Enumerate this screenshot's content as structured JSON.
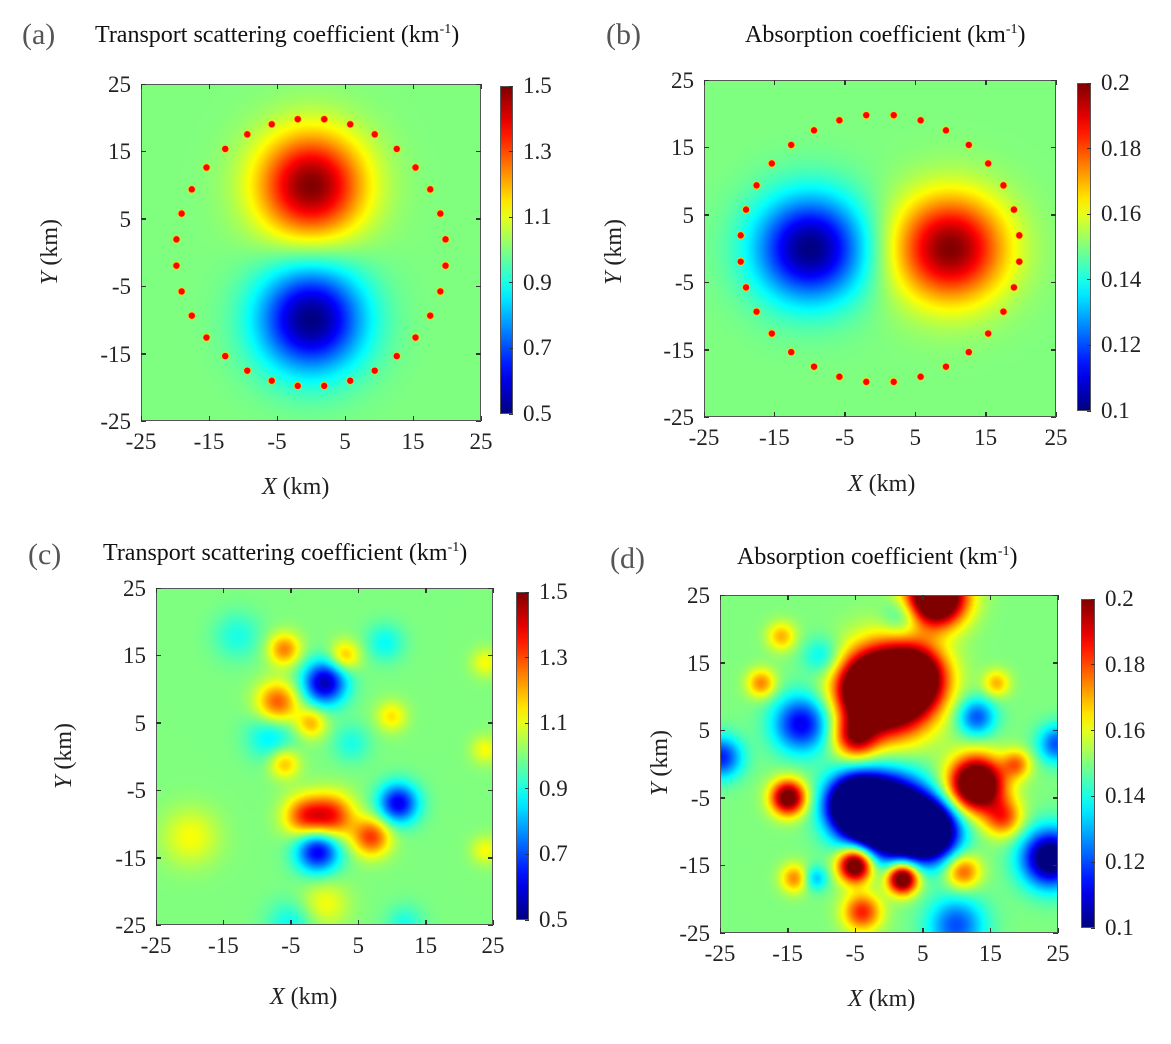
{
  "figure": {
    "description": "Four heat-map panels: true and reconstructed optical coefficient fields with sensor ring"
  },
  "chart_data": [
    {
      "id": "a",
      "panel_label": "(a)",
      "type": "heatmap",
      "title": "Transport scattering coefficient (km",
      "title_sup": "-1",
      "title_close": ")",
      "xlabel_var": "X",
      "xlabel_unit": " (km)",
      "ylabel_var": "Y",
      "ylabel_unit": " (km)",
      "xlim": [
        -25,
        25
      ],
      "ylim": [
        -25,
        25
      ],
      "xticks": [
        "-25",
        "-15",
        "-5",
        "5",
        "15",
        "25"
      ],
      "yticks": [
        "25",
        "15",
        "5",
        "-5",
        "-15",
        "-25"
      ],
      "colormap": "jet",
      "clim": [
        0.5,
        1.5
      ],
      "colorbar_ticks": [
        "1.5",
        "1.3",
        "1.1",
        "0.9",
        "0.7",
        "0.5"
      ],
      "background_value": 1.0,
      "field": "gaussian_anomalies",
      "anomalies": [
        {
          "x": 0,
          "y": 10,
          "amplitude": 0.5,
          "radius_km": 5.5
        },
        {
          "x": 0,
          "y": -10,
          "amplitude": -0.5,
          "radius_km": 5.5
        }
      ],
      "sensors": {
        "count": 32,
        "radius_km": 20,
        "center": [
          0,
          0
        ],
        "color": "#ff0000"
      }
    },
    {
      "id": "b",
      "panel_label": "(b)",
      "type": "heatmap",
      "title": "Absorption coefficient (km",
      "title_sup": "-1",
      "title_close": ")",
      "xlabel_var": "X",
      "xlabel_unit": " (km)",
      "ylabel_var": "Y",
      "ylabel_unit": " (km)",
      "xlim": [
        -25,
        25
      ],
      "ylim": [
        -25,
        25
      ],
      "xticks": [
        "-25",
        "-15",
        "-5",
        "5",
        "15",
        "25"
      ],
      "yticks": [
        "25",
        "15",
        "5",
        "-5",
        "-15",
        "-25"
      ],
      "colormap": "jet",
      "clim": [
        0.1,
        0.2
      ],
      "colorbar_ticks": [
        "0.2",
        "0.18",
        "0.16",
        "0.14",
        "0.12",
        "0.1"
      ],
      "background_value": 0.15,
      "field": "gaussian_anomalies",
      "anomalies": [
        {
          "x": -10,
          "y": 0,
          "amplitude": -0.05,
          "radius_km": 5.5
        },
        {
          "x": 10,
          "y": 0,
          "amplitude": 0.05,
          "radius_km": 5.5
        }
      ],
      "sensors": {
        "count": 32,
        "radius_km": 20,
        "center": [
          0,
          0
        ],
        "color": "#ff0000"
      }
    },
    {
      "id": "c",
      "panel_label": "(c)",
      "type": "heatmap",
      "title": "Transport scattering coefficient (km",
      "title_sup": "-1",
      "title_close": ")",
      "xlabel_var": "X",
      "xlabel_unit": " (km)",
      "ylabel_var": "Y",
      "ylabel_unit": " (km)",
      "xlim": [
        -25,
        25
      ],
      "ylim": [
        -25,
        25
      ],
      "xticks": [
        "-25",
        "-15",
        "-5",
        "5",
        "15",
        "25"
      ],
      "yticks": [
        "25",
        "15",
        "5",
        "-5",
        "-15",
        "-25"
      ],
      "colormap": "jet",
      "clim": [
        0.5,
        1.5
      ],
      "colorbar_ticks": [
        "1.5",
        "1.3",
        "1.1",
        "0.9",
        "0.7",
        "0.5"
      ],
      "background_value": 1.0,
      "field": "reconstruction",
      "anomalies": [
        {
          "x": 0,
          "y": 11,
          "amplitude": -0.45,
          "radius_km": 2.3
        },
        {
          "x": -7,
          "y": 8,
          "amplitude": 0.3,
          "radius_km": 2.2
        },
        {
          "x": -6,
          "y": 16,
          "amplitude": 0.25,
          "radius_km": 1.7
        },
        {
          "x": 3,
          "y": 15,
          "amplitude": 0.2,
          "radius_km": 1.6
        },
        {
          "x": -2,
          "y": 5,
          "amplitude": 0.2,
          "radius_km": 1.6
        },
        {
          "x": -6,
          "y": -1,
          "amplitude": 0.2,
          "radius_km": 1.6
        },
        {
          "x": -8,
          "y": 3,
          "amplitude": -0.15,
          "radius_km": 2.5
        },
        {
          "x": 1,
          "y": -9,
          "amplitude": 0.35,
          "radius_km": 2.4
        },
        {
          "x": -3,
          "y": -9,
          "amplitude": 0.3,
          "radius_km": 2.2
        },
        {
          "x": 7,
          "y": -12,
          "amplitude": 0.32,
          "radius_km": 2.0
        },
        {
          "x": 11,
          "y": -7,
          "amplitude": -0.4,
          "radius_km": 2.1
        },
        {
          "x": -1,
          "y": -14,
          "amplitude": -0.42,
          "radius_km": 2.3
        },
        {
          "x": 10,
          "y": 6,
          "amplitude": 0.15,
          "radius_km": 1.6
        },
        {
          "x": 4,
          "y": 2,
          "amplitude": -0.1,
          "radius_km": 2.0
        },
        {
          "x": 9,
          "y": 17,
          "amplitude": -0.12,
          "radius_km": 2.0
        },
        {
          "x": -13,
          "y": 18,
          "amplitude": -0.1,
          "radius_km": 2.5
        },
        {
          "x": -20,
          "y": -12,
          "amplitude": 0.12,
          "radius_km": 3.0
        },
        {
          "x": 24,
          "y": 14,
          "amplitude": 0.12,
          "radius_km": 1.5
        },
        {
          "x": 24,
          "y": 1,
          "amplitude": 0.12,
          "radius_km": 1.5
        },
        {
          "x": 24,
          "y": -14,
          "amplitude": 0.12,
          "radius_km": 1.5
        },
        {
          "x": 0,
          "y": -22,
          "amplitude": 0.12,
          "radius_km": 2.5
        },
        {
          "x": -5,
          "y": -25,
          "amplitude": -0.12,
          "radius_km": 2.5
        },
        {
          "x": 12,
          "y": -25,
          "amplitude": -0.1,
          "radius_km": 2.0
        }
      ],
      "sensors": null
    },
    {
      "id": "d",
      "panel_label": "(d)",
      "type": "heatmap",
      "title": "Absorption coefficient (km",
      "title_sup": "-1",
      "title_close": ")",
      "xlabel_var": "X",
      "xlabel_unit": " (km)",
      "ylabel_var": "Y",
      "ylabel_unit": " (km)",
      "xlim": [
        -25,
        25
      ],
      "ylim": [
        -25,
        25
      ],
      "xticks": [
        "-25",
        "-15",
        "-5",
        "5",
        "15",
        "25"
      ],
      "yticks": [
        "25",
        "15",
        "5",
        "-5",
        "-15",
        "-25"
      ],
      "colormap": "jet",
      "clim": [
        0.1,
        0.2
      ],
      "colorbar_ticks": [
        "0.2",
        "0.18",
        "0.16",
        "0.14",
        "0.12",
        "0.1"
      ],
      "background_value": 0.15,
      "field": "reconstruction",
      "anomalies": [
        {
          "x": 0,
          "y": 11,
          "amplitude": 0.09,
          "radius_km": 4.5
        },
        {
          "x": -3,
          "y": 11,
          "amplitude": 0.05,
          "radius_km": 3.0
        },
        {
          "x": 4,
          "y": 13,
          "amplitude": 0.05,
          "radius_km": 3.0
        },
        {
          "x": -5,
          "y": 4,
          "amplitude": 0.04,
          "radius_km": 2.2
        },
        {
          "x": 7,
          "y": 25,
          "amplitude": 0.09,
          "radius_km": 3.0
        },
        {
          "x": 0,
          "y": -8,
          "amplitude": -0.1,
          "radius_km": 4.0
        },
        {
          "x": -5,
          "y": -6,
          "amplitude": -0.08,
          "radius_km": 3.0
        },
        {
          "x": 6,
          "y": -10,
          "amplitude": -0.08,
          "radius_km": 3.0
        },
        {
          "x": -13,
          "y": 6,
          "amplitude": -0.04,
          "radius_km": 3.0
        },
        {
          "x": -15,
          "y": -5,
          "amplitude": 0.06,
          "radius_km": 1.8
        },
        {
          "x": 13,
          "y": -3,
          "amplitude": 0.08,
          "radius_km": 2.8
        },
        {
          "x": 19,
          "y": 0,
          "amplitude": 0.025,
          "radius_km": 1.5
        },
        {
          "x": 17,
          "y": -8,
          "amplitude": 0.03,
          "radius_km": 2.0
        },
        {
          "x": -5,
          "y": -15,
          "amplitude": 0.07,
          "radius_km": 1.8
        },
        {
          "x": 2,
          "y": -17,
          "amplitude": 0.07,
          "radius_km": 1.6
        },
        {
          "x": -4,
          "y": -22,
          "amplitude": 0.035,
          "radius_km": 2.0
        },
        {
          "x": 11,
          "y": -16,
          "amplitude": 0.03,
          "radius_km": 1.8
        },
        {
          "x": -14,
          "y": -17,
          "amplitude": 0.025,
          "radius_km": 1.5
        },
        {
          "x": -11,
          "y": -17,
          "amplitude": -0.02,
          "radius_km": 1.3
        },
        {
          "x": 24,
          "y": -14,
          "amplitude": -0.06,
          "radius_km": 3.0
        },
        {
          "x": 25,
          "y": 3,
          "amplitude": -0.03,
          "radius_km": 2.0
        },
        {
          "x": -25,
          "y": 1,
          "amplitude": -0.035,
          "radius_km": 2.2
        },
        {
          "x": -19,
          "y": 12,
          "amplitude": 0.025,
          "radius_km": 1.5
        },
        {
          "x": -16,
          "y": 19,
          "amplitude": 0.02,
          "radius_km": 1.5
        },
        {
          "x": 16,
          "y": 12,
          "amplitude": 0.02,
          "radius_km": 1.4
        },
        {
          "x": 13,
          "y": 7,
          "amplitude": -0.03,
          "radius_km": 2.0
        },
        {
          "x": 2,
          "y": 22,
          "amplitude": -0.015,
          "radius_km": 2.0
        },
        {
          "x": 10,
          "y": -24,
          "amplitude": -0.03,
          "radius_km": 3.0
        },
        {
          "x": -10,
          "y": 16,
          "amplitude": -0.015,
          "radius_km": 2.0
        }
      ],
      "sensors": null
    }
  ]
}
